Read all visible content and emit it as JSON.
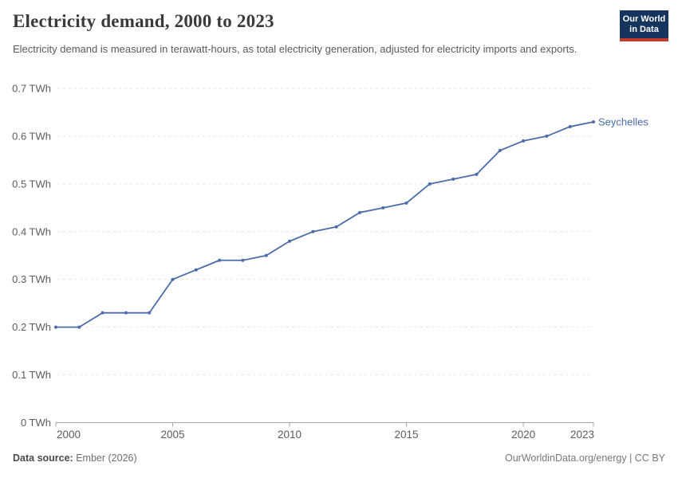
{
  "header": {
    "title": "Electricity demand, 2000 to 2023",
    "subtitle": "Electricity demand is measured in terawatt-hours, as total electricity generation, adjusted for electricity imports and exports.",
    "logo": {
      "line1": "Our World",
      "line2": "in Data",
      "bg_color": "#15355e",
      "accent_color": "#c23b2c"
    }
  },
  "footer": {
    "datasource_label": "Data source:",
    "datasource_value": "Ember (2026)",
    "credit": "OurWorldinData.org/energy | CC BY"
  },
  "chart_data": {
    "type": "line",
    "title": "Electricity demand, 2000 to 2023",
    "unit": "TWh",
    "x": [
      2000,
      2001,
      2002,
      2003,
      2004,
      2005,
      2006,
      2007,
      2008,
      2009,
      2010,
      2011,
      2012,
      2013,
      2014,
      2015,
      2016,
      2017,
      2018,
      2019,
      2020,
      2021,
      2022,
      2023
    ],
    "series": [
      {
        "name": "Seychelles",
        "values": [
          0.2,
          0.2,
          0.23,
          0.23,
          0.23,
          0.3,
          0.32,
          0.34,
          0.34,
          0.35,
          0.38,
          0.4,
          0.41,
          0.44,
          0.45,
          0.46,
          0.5,
          0.51,
          0.52,
          0.57,
          0.59,
          0.6,
          0.62,
          0.63
        ]
      }
    ],
    "xlim": [
      2000,
      2023
    ],
    "ylim": [
      0,
      0.7
    ],
    "grid": "horizontal-dashed",
    "legend_position": "end-of-line-label",
    "y_ticks": [
      {
        "v": 0,
        "label": "0 TWh"
      },
      {
        "v": 0.1,
        "label": "0.1 TWh"
      },
      {
        "v": 0.2,
        "label": "0.2 TWh"
      },
      {
        "v": 0.3,
        "label": "0.3 TWh"
      },
      {
        "v": 0.4,
        "label": "0.4 TWh"
      },
      {
        "v": 0.5,
        "label": "0.5 TWh"
      },
      {
        "v": 0.6,
        "label": "0.6 TWh"
      },
      {
        "v": 0.7,
        "label": "0.7 TWh"
      }
    ],
    "x_ticks": [
      {
        "v": 2000,
        "label": "2000"
      },
      {
        "v": 2005,
        "label": "2005"
      },
      {
        "v": 2010,
        "label": "2010"
      },
      {
        "v": 2015,
        "label": "2015"
      },
      {
        "v": 2020,
        "label": "2020"
      },
      {
        "v": 2023,
        "label": "2023"
      }
    ],
    "colors": {
      "line": "#4c6ba9",
      "grid": "#e2e2e2",
      "axis": "#a3a3a3",
      "tick_text": "#5c5c5c"
    }
  }
}
